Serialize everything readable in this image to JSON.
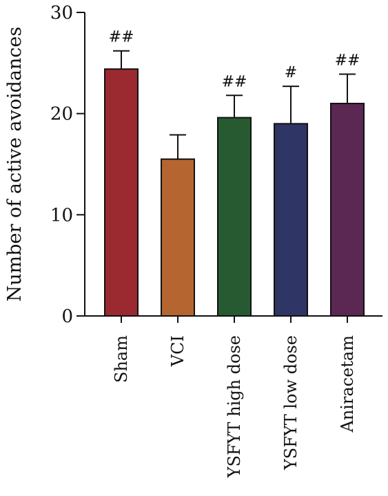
{
  "chart_data": {
    "type": "bar",
    "title": "",
    "xlabel": "",
    "ylabel": "Number of active avoidances",
    "ylim": [
      0,
      30
    ],
    "yticks": [
      0,
      10,
      20,
      30
    ],
    "grid": false,
    "categories": [
      "Sham",
      "VCI",
      "YSFYT high dose",
      "YSFYT low dose",
      "Aniracetam"
    ],
    "values": [
      24.4,
      15.5,
      19.6,
      19.0,
      21.0
    ],
    "error": [
      1.8,
      2.4,
      2.2,
      3.7,
      2.9
    ],
    "significance": [
      "##",
      "",
      "##",
      "#",
      "##"
    ],
    "colors": [
      "#9b2a30",
      "#b5652f",
      "#275a31",
      "#2f3564",
      "#5b2753"
    ]
  }
}
